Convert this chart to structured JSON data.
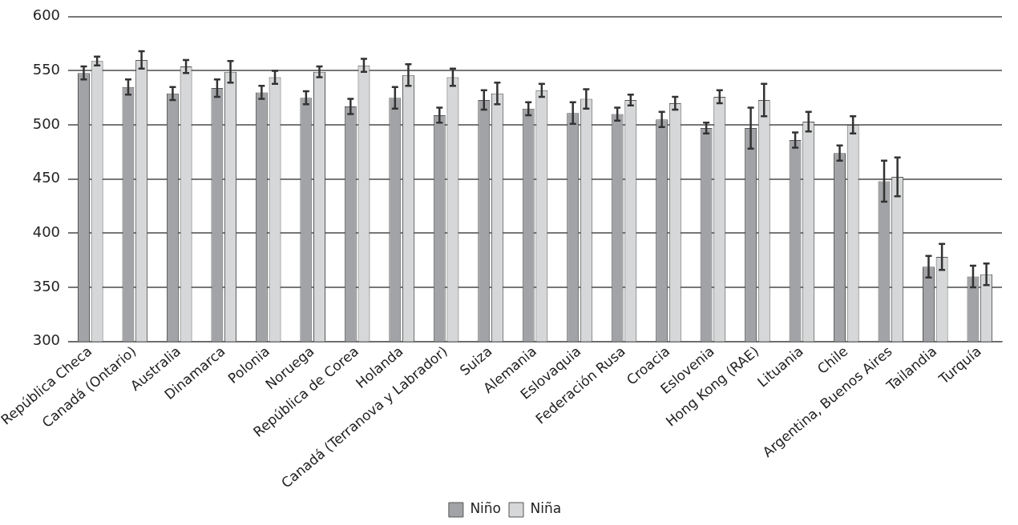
{
  "chart_data": {
    "type": "bar",
    "categories": [
      "República Checa",
      "Canadá (Ontario)",
      "Australia",
      "Dinamarca",
      "Polonia",
      "Noruega",
      "República de Corea",
      "Holanda",
      "Canadá (Terranova y Labrador)",
      "Suiza",
      "Alemania",
      "Eslovaquia",
      "Federación Rusa",
      "Croacia",
      "Eslovenia",
      "Hong Kong (RAE)",
      "Lituania",
      "Chile",
      "Argentina, Buenos Aires",
      "Tailandia",
      "Turquía"
    ],
    "series": [
      {
        "name": "Niño",
        "color": "#a2a3a6",
        "values": [
          548,
          535,
          529,
          534,
          530,
          525,
          517,
          525,
          509,
          523,
          515,
          511,
          510,
          505,
          497,
          497,
          486,
          474,
          448,
          369,
          360
        ],
        "errors": [
          6,
          7,
          6,
          8,
          6,
          6,
          7,
          10,
          7,
          9,
          6,
          10,
          6,
          7,
          5,
          19,
          7,
          7,
          19,
          10,
          10
        ]
      },
      {
        "name": "Niña",
        "color": "#d6d7d8",
        "values": [
          559,
          560,
          554,
          549,
          544,
          549,
          555,
          546,
          544,
          529,
          532,
          524,
          523,
          520,
          526,
          523,
          503,
          500,
          452,
          378,
          362
        ],
        "errors": [
          4,
          8,
          6,
          10,
          6,
          5,
          6,
          10,
          8,
          10,
          6,
          9,
          5,
          6,
          6,
          15,
          9,
          8,
          18,
          12,
          10
        ]
      }
    ],
    "ylim": [
      300,
      600
    ],
    "yticks": [
      300,
      350,
      400,
      450,
      500,
      550,
      600
    ],
    "grid": "y",
    "legend": "bottom"
  }
}
